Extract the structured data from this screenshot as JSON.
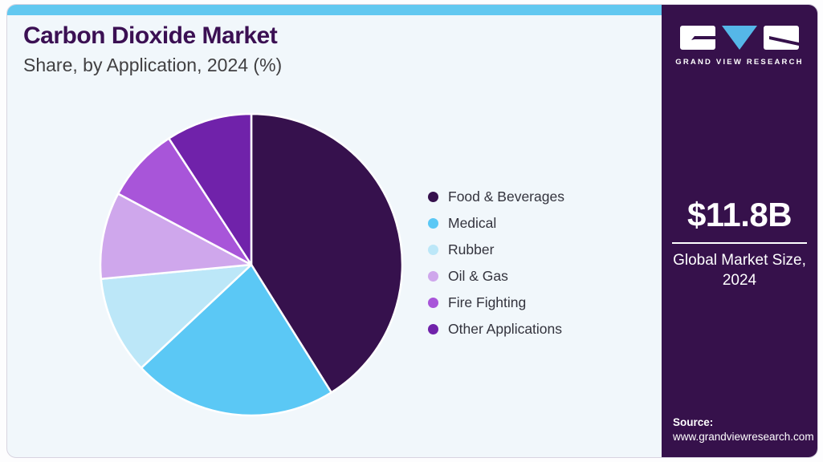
{
  "header": {
    "title": "Carbon Dioxide Market",
    "subtitle": "Share, by Application, 2024 (%)"
  },
  "chart_data": {
    "type": "pie",
    "title": "Carbon Dioxide Market Share, by Application, 2024 (%)",
    "categories": [
      "Food & Beverages",
      "Medical",
      "Rubber",
      "Oil & Gas",
      "Fire Fighting",
      "Other Applications"
    ],
    "values": [
      41.1,
      21.9,
      10.5,
      9.3,
      8.0,
      9.2
    ],
    "unit": "%",
    "colors": [
      "#36114d",
      "#5bc8f5",
      "#bce7f8",
      "#cfa7ec",
      "#a855d9",
      "#7022aa"
    ],
    "start_angle_deg": 0,
    "direction": "clockwise",
    "legend_position": "right",
    "slice_border_color": "#ffffff"
  },
  "sidebar": {
    "logo_text": "GRAND VIEW RESEARCH",
    "market_size_value": "$11.8B",
    "market_size_label": "Global Market Size, 2024",
    "source_label": "Source:",
    "source_url": "www.grandviewresearch.com"
  },
  "theme": {
    "topbar_color": "#62c8f0",
    "card_bg": "#f1f7fb",
    "sidebar_bg": "#36114b",
    "title_color": "#3b1053",
    "subtitle_color": "#414042",
    "legend_text_color": "#33333d",
    "logo_blue": "#55b7e8"
  }
}
